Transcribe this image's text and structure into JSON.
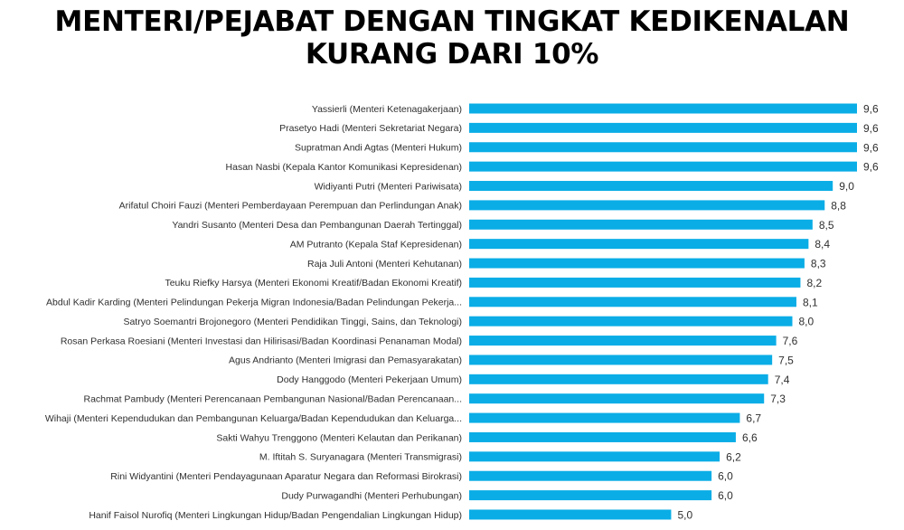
{
  "title_line1": "MENTERI/PEJABAT DENGAN TINGKAT KEDIKENALAN",
  "title_line2": "KURANG DARI 10%",
  "colors": {
    "bar": "#0aade6",
    "text": "#2f2f2f"
  },
  "chart_data": {
    "type": "bar",
    "orientation": "horizontal",
    "title": "MENTERI/PEJABAT DENGAN TINGKAT KEDIKENALAN KURANG DARI 10%",
    "xlim": [
      0,
      9.6
    ],
    "grid": false,
    "categories": [
      "Yassierli (Menteri Ketenagakerjaan)",
      "Prasetyo Hadi (Menteri Sekretariat Negara)",
      "Supratman Andi Agtas (Menteri Hukum)",
      "Hasan Nasbi (Kepala Kantor Komunikasi Kepresidenan)",
      "Widiyanti Putri (Menteri Pariwisata)",
      "Arifatul Choiri Fauzi (Menteri Pemberdayaan Perempuan dan Perlindungan Anak)",
      "Yandri Susanto (Menteri Desa dan Pembangunan Daerah Tertinggal)",
      "AM Putranto (Kepala Staf Kepresidenan)",
      "Raja Juli Antoni (Menteri Kehutanan)",
      "Teuku Riefky Harsya (Menteri Ekonomi Kreatif/Badan Ekonomi Kreatif)",
      "Abdul Kadir Karding (Menteri Pelindungan Pekerja Migran Indonesia/Badan Pelindungan Pekerja...",
      "Satryo Soemantri Brojonegoro (Menteri Pendidikan Tinggi, Sains, dan Teknologi)",
      "Rosan Perkasa Roesiani (Menteri Investasi dan Hilirisasi/Badan Koordinasi Penanaman Modal)",
      "Agus Andrianto (Menteri Imigrasi dan Pemasyarakatan)",
      "Dody Hanggodo (Menteri Pekerjaan Umum)",
      "Rachmat Pambudy (Menteri Perencanaan Pembangunan Nasional/Badan Perencanaan...",
      "Wihaji (Menteri Kependudukan dan Pembangunan Keluarga/Badan Kependudukan dan Keluarga...",
      "Sakti Wahyu Trenggono (Menteri Kelautan dan Perikanan)",
      "M. Iftitah S. Suryanagara (Menteri Transmigrasi)",
      "Rini Widyantini (Menteri Pendayagunaan Aparatur Negara dan Reformasi Birokrasi)",
      "Dudy Purwagandhi (Menteri Perhubungan)",
      "Hanif Faisol Nurofiq (Menteri Lingkungan Hidup/Badan Pengendalian Lingkungan Hidup)"
    ],
    "values": [
      9.6,
      9.6,
      9.6,
      9.6,
      9.0,
      8.8,
      8.5,
      8.4,
      8.3,
      8.2,
      8.1,
      8.0,
      7.6,
      7.5,
      7.4,
      7.3,
      6.7,
      6.6,
      6.2,
      6.0,
      6.0,
      5.0
    ],
    "value_labels": [
      "9,6",
      "9,6",
      "9,6",
      "9,6",
      "9,0",
      "8,8",
      "8,5",
      "8,4",
      "8,3",
      "8,2",
      "8,1",
      "8,0",
      "7,6",
      "7,5",
      "7,4",
      "7,3",
      "6,7",
      "6,6",
      "6,2",
      "6,0",
      "6,0",
      "5,0"
    ]
  }
}
